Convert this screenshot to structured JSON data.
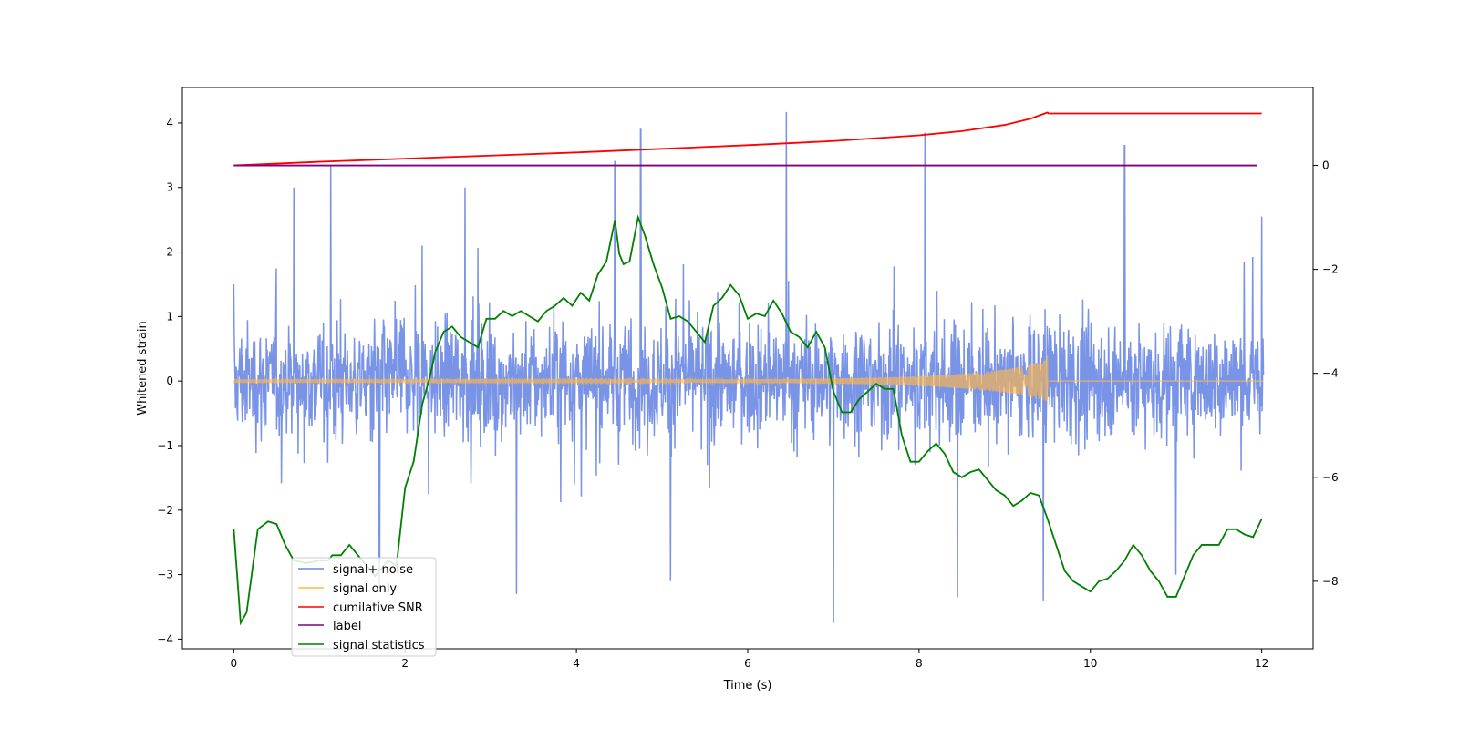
{
  "chart_data": {
    "type": "line",
    "title": "",
    "xlabel": "Time (s)",
    "ylabel": "Whitened strain",
    "y2label": "",
    "xlim": [
      -0.6,
      12.6
    ],
    "ylim": [
      -4.15,
      4.55
    ],
    "y2lim": [
      -9.3,
      1.5
    ],
    "x_ticks": [
      0,
      2,
      4,
      6,
      8,
      10,
      12
    ],
    "x_tick_labels": [
      "0",
      "2",
      "4",
      "6",
      "8",
      "10",
      "12"
    ],
    "y_ticks": [
      4,
      3,
      2,
      1,
      0,
      -1,
      -2,
      -3,
      -4
    ],
    "y_tick_labels": [
      "4",
      "3",
      "2",
      "1",
      "0",
      "−1",
      "−2",
      "−3",
      "−4"
    ],
    "y2_ticks": [
      0,
      -2,
      -4,
      -6,
      -8
    ],
    "y2_tick_labels": [
      "0",
      "−2",
      "−4",
      "−6",
      "−8"
    ],
    "grid": false,
    "legend_position": "lower-left",
    "series": [
      {
        "name": "signal+ noise",
        "axis": "left",
        "color": "#6a87e4",
        "description_values": "dense noise, approx 0 ± 1.3, spikes up to 4.2 and down to -3.8",
        "spikes": [
          [
            0.0,
            1.5
          ],
          [
            1.13,
            3.35
          ],
          [
            2.2,
            2.1
          ],
          [
            4.45,
            3.4
          ],
          [
            4.75,
            3.9
          ],
          [
            6.45,
            4.17
          ],
          [
            8.07,
            3.85
          ],
          [
            10.4,
            3.65
          ],
          [
            7.0,
            -3.75
          ],
          [
            9.45,
            -3.4
          ],
          [
            3.3,
            -3.3
          ],
          [
            1.7,
            -3.2
          ],
          [
            5.1,
            -3.1
          ],
          [
            8.45,
            -3.35
          ],
          [
            11.0,
            -3.0
          ],
          [
            0.7,
            3.0
          ],
          [
            2.7,
            3.0
          ],
          [
            12.0,
            2.55
          ]
        ]
      },
      {
        "name": "signal only",
        "axis": "left",
        "color": "#ffb84a",
        "description_values": "chirp growing to amplitude ~0.4 at t=9.5 s, then zero",
        "chirp_end_time": 9.5,
        "chirp_peak_amplitude": 0.42
      },
      {
        "name": "cumilative SNR",
        "axis": "right",
        "color": "#ff0000",
        "x": [
          0.0,
          1.0,
          2.0,
          3.0,
          4.0,
          5.0,
          6.0,
          7.0,
          8.0,
          8.5,
          9.0,
          9.3,
          9.5,
          9.51,
          12.0
        ],
        "values": [
          0.0,
          0.07,
          0.13,
          0.19,
          0.25,
          0.32,
          0.39,
          0.47,
          0.58,
          0.66,
          0.78,
          0.9,
          1.02,
          1.0,
          1.0
        ]
      },
      {
        "name": "label",
        "axis": "right",
        "color": "#800080",
        "x": [
          0.0,
          11.95
        ],
        "values": [
          0.0,
          0.0
        ]
      },
      {
        "name": "signal statistics",
        "axis": "right",
        "color": "#008000",
        "x": [
          0.0,
          0.08,
          0.15,
          0.28,
          0.4,
          0.5,
          0.6,
          0.7,
          0.85,
          1.0,
          1.1,
          1.15,
          1.25,
          1.35,
          1.5,
          1.65,
          1.8,
          1.9,
          2.0,
          2.1,
          2.2,
          2.3,
          2.35,
          2.45,
          2.55,
          2.65,
          2.75,
          2.85,
          2.95,
          3.05,
          3.15,
          3.25,
          3.35,
          3.45,
          3.55,
          3.65,
          3.75,
          3.85,
          3.95,
          4.05,
          4.15,
          4.25,
          4.35,
          4.45,
          4.5,
          4.55,
          4.62,
          4.72,
          4.8,
          4.9,
          5.0,
          5.1,
          5.2,
          5.3,
          5.4,
          5.5,
          5.6,
          5.7,
          5.8,
          5.9,
          6.0,
          6.1,
          6.2,
          6.3,
          6.4,
          6.5,
          6.6,
          6.7,
          6.8,
          6.9,
          7.0,
          7.1,
          7.2,
          7.3,
          7.4,
          7.5,
          7.6,
          7.7,
          7.8,
          7.9,
          8.0,
          8.1,
          8.2,
          8.3,
          8.4,
          8.5,
          8.6,
          8.7,
          8.8,
          8.9,
          9.0,
          9.1,
          9.2,
          9.3,
          9.4,
          9.5,
          9.6,
          9.7,
          9.8,
          9.9,
          10.0,
          10.1,
          10.2,
          10.3,
          10.4,
          10.5,
          10.6,
          10.7,
          10.8,
          10.9,
          11.0,
          11.1,
          11.2,
          11.3,
          11.4,
          11.5,
          11.6,
          11.7,
          11.8,
          11.9,
          12.0
        ],
        "values": [
          -7.0,
          -8.8,
          -8.6,
          -7.0,
          -6.85,
          -6.9,
          -7.3,
          -7.6,
          -7.65,
          -7.6,
          -7.6,
          -7.5,
          -7.5,
          -7.3,
          -7.6,
          -7.9,
          -7.6,
          -7.7,
          -6.2,
          -5.7,
          -4.6,
          -4.0,
          -3.6,
          -3.2,
          -3.1,
          -3.3,
          -3.4,
          -3.5,
          -2.95,
          -2.95,
          -2.8,
          -2.9,
          -2.8,
          -2.9,
          -3.0,
          -2.8,
          -2.7,
          -2.55,
          -2.7,
          -2.45,
          -2.6,
          -2.1,
          -1.85,
          -1.05,
          -1.7,
          -1.9,
          -1.85,
          -1.0,
          -1.35,
          -1.9,
          -2.35,
          -2.95,
          -2.9,
          -3.0,
          -3.2,
          -3.4,
          -2.7,
          -2.55,
          -2.3,
          -2.5,
          -2.95,
          -2.85,
          -2.9,
          -2.6,
          -2.85,
          -3.2,
          -3.3,
          -3.5,
          -3.2,
          -3.5,
          -4.35,
          -4.75,
          -4.75,
          -4.5,
          -4.35,
          -4.2,
          -4.3,
          -4.3,
          -5.2,
          -5.7,
          -5.7,
          -5.5,
          -5.35,
          -5.55,
          -5.9,
          -6.0,
          -5.9,
          -5.85,
          -6.05,
          -6.25,
          -6.35,
          -6.55,
          -6.45,
          -6.3,
          -6.35,
          -6.8,
          -7.3,
          -7.8,
          -8.0,
          -8.1,
          -8.2,
          -8.0,
          -7.95,
          -7.8,
          -7.6,
          -7.3,
          -7.5,
          -7.8,
          -8.0,
          -8.3,
          -8.3,
          -7.9,
          -7.5,
          -7.3,
          -7.3,
          -7.3,
          -7.0,
          -7.0,
          -7.1,
          -7.15,
          -6.8
        ]
      }
    ]
  },
  "legend": {
    "entries": [
      {
        "label": "signal+ noise",
        "color": "#6a87e4"
      },
      {
        "label": "signal only",
        "color": "#ffb84a"
      },
      {
        "label": "cumilative SNR",
        "color": "#ff0000"
      },
      {
        "label": "label",
        "color": "#800080"
      },
      {
        "label": "signal statistics",
        "color": "#008000"
      }
    ]
  }
}
